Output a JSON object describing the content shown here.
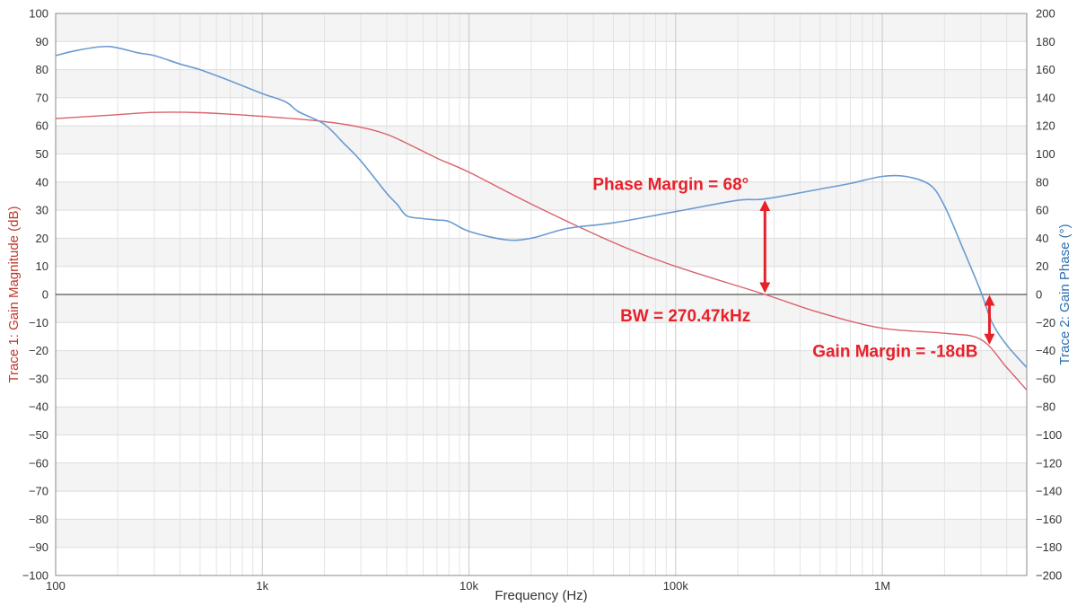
{
  "chart_data": {
    "type": "line",
    "xlabel": "Frequency (Hz)",
    "ylabel_left": "Trace 1: Gain Magnitude (dB)",
    "ylabel_right": "Trace 2: Gain Phase (°)",
    "x_scale": "log",
    "xlim": [
      100,
      5000000
    ],
    "ylim_left": [
      -100,
      100
    ],
    "ylim_right": [
      -200,
      200
    ],
    "x_ticks": [
      100,
      1000,
      10000,
      100000,
      1000000
    ],
    "x_tick_labels": [
      "100",
      "1k",
      "10k",
      "100k",
      "1M"
    ],
    "y_ticks_left": [
      -100,
      -90,
      -80,
      -70,
      -60,
      -50,
      -40,
      -30,
      -20,
      -10,
      0,
      10,
      20,
      30,
      40,
      50,
      60,
      70,
      80,
      90,
      100
    ],
    "y_ticks_right": [
      -200,
      -180,
      -160,
      -140,
      -120,
      -100,
      -80,
      -60,
      -40,
      -20,
      0,
      20,
      40,
      60,
      80,
      100,
      120,
      140,
      160,
      180,
      200
    ],
    "grid": true,
    "colors": {
      "magnitude": "#d9626b",
      "phase": "#6a9bd1",
      "annotation": "#e8202a",
      "left_axis_title": "#c0392b",
      "right_axis_title": "#2e6fb0",
      "zero_line": "#555555",
      "grid": "#dcdcdc",
      "band": "#f4f4f4"
    },
    "series": [
      {
        "name": "Trace 1: Gain Magnitude (dB)",
        "axis": "left",
        "x": [
          100,
          200,
          300,
          500,
          1000,
          2000,
          3000,
          4000,
          5000,
          7000,
          10000,
          20000,
          50000,
          100000,
          270470,
          500000,
          1000000,
          2000000,
          3000000,
          4000000,
          5000000
        ],
        "y": [
          62.6,
          64,
          64.8,
          64.7,
          63.4,
          61.5,
          59.5,
          57,
          53.8,
          48.5,
          43.5,
          32.2,
          18.5,
          10,
          0,
          -6.5,
          -12,
          -13.8,
          -16,
          -26,
          -34
        ]
      },
      {
        "name": "Trace 2: Gain Phase (°)",
        "axis": "right",
        "x": [
          100,
          130,
          180,
          250,
          300,
          400,
          500,
          700,
          1000,
          1300,
          1500,
          2000,
          2500,
          3000,
          4000,
          4500,
          5000,
          6000,
          7000,
          8000,
          10000,
          15000,
          20000,
          30000,
          50000,
          100000,
          200000,
          270470,
          500000,
          700000,
          1000000,
          1300000,
          1700000,
          2000000,
          2500000,
          3000000,
          3400000,
          4000000,
          5000000
        ],
        "y": [
          170,
          174,
          176.5,
          172,
          170,
          164,
          160,
          152,
          143,
          137,
          130,
          121,
          107,
          95,
          72,
          64,
          56,
          54,
          53,
          52,
          45,
          39,
          40,
          47,
          51,
          59,
          67,
          68,
          75,
          79,
          84,
          84,
          78,
          63,
          30,
          2,
          -20,
          -36,
          -52
        ]
      }
    ],
    "annotations": {
      "phase_margin": {
        "text": "Phase Margin = 68°",
        "x": 270470,
        "from_deg": 0,
        "to_deg": 68
      },
      "bandwidth": {
        "text": "BW = 270.47kHz",
        "x": 270470
      },
      "gain_margin": {
        "text": "Gain Margin = -18dB",
        "x": 3300000,
        "from_db": 0,
        "to_db": -18
      }
    }
  }
}
